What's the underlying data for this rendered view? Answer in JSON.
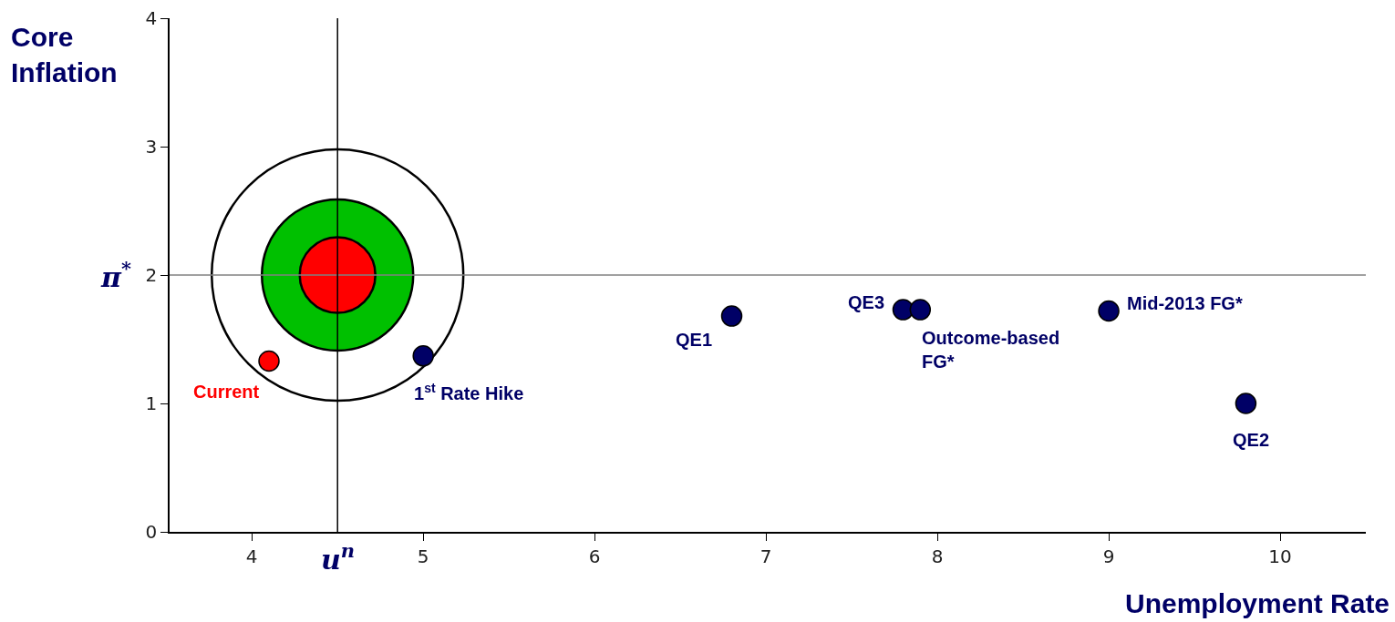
{
  "chart_data": {
    "type": "scatter",
    "xlabel": "Unemployment Rate",
    "ylabel": "Core Inflation",
    "series": [
      {
        "type": "bubble",
        "x": [
          4.5,
          4.5
        ],
        "values": [
          2,
          2
        ],
        "sizes": [
          1,
          0.25
        ],
        "colors": [
          "#00c000",
          "#ff0000"
        ]
      },
      {
        "x": [
          4.1,
          5.0,
          6.8,
          7.8,
          7.9,
          9.0,
          9.8
        ],
        "values": [
          1.33,
          1.37,
          1.68,
          1.73,
          1.73,
          1.72,
          1.0
        ],
        "colors": [
          "#ff0000",
          "#000066",
          "#000066",
          "#000066",
          "#000066",
          "#000066",
          "#000066"
        ]
      }
    ],
    "marker": "circle",
    "xlim": [
      3.52,
      10.5
    ],
    "xticks": [
      4,
      5,
      6,
      7,
      8,
      9,
      10
    ],
    "ylim": [
      0,
      4
    ],
    "yticks": [
      0,
      1,
      2,
      3,
      4
    ],
    "grid": false,
    "ref_lines": [
      {
        "axis": "y",
        "value": 2,
        "label": "π$^{*}$",
        "color": "#808080"
      },
      {
        "axis": "x",
        "value": 4.5,
        "label": "u$^{n}$",
        "color": "#000000"
      }
    ],
    "annotations": [
      {
        "text": "Current",
        "x": 4.1,
        "y": 1.33
      },
      {
        "text": "1$^{st}$ Rate Hike",
        "x": 5.0,
        "y": 1.37
      },
      {
        "text": "QE1",
        "x": 6.8,
        "y": 1.68
      },
      {
        "text": "QE3",
        "x": 7.8,
        "y": 1.73
      },
      {
        "text": "Outcome-based\nFG*",
        "x": 7.9,
        "y": 1.73
      },
      {
        "text": "Mid-2013 FG*",
        "x": 9.0,
        "y": 1.72
      },
      {
        "text": "QE2",
        "x": 9.8,
        "y": 1.0
      }
    ]
  }
}
